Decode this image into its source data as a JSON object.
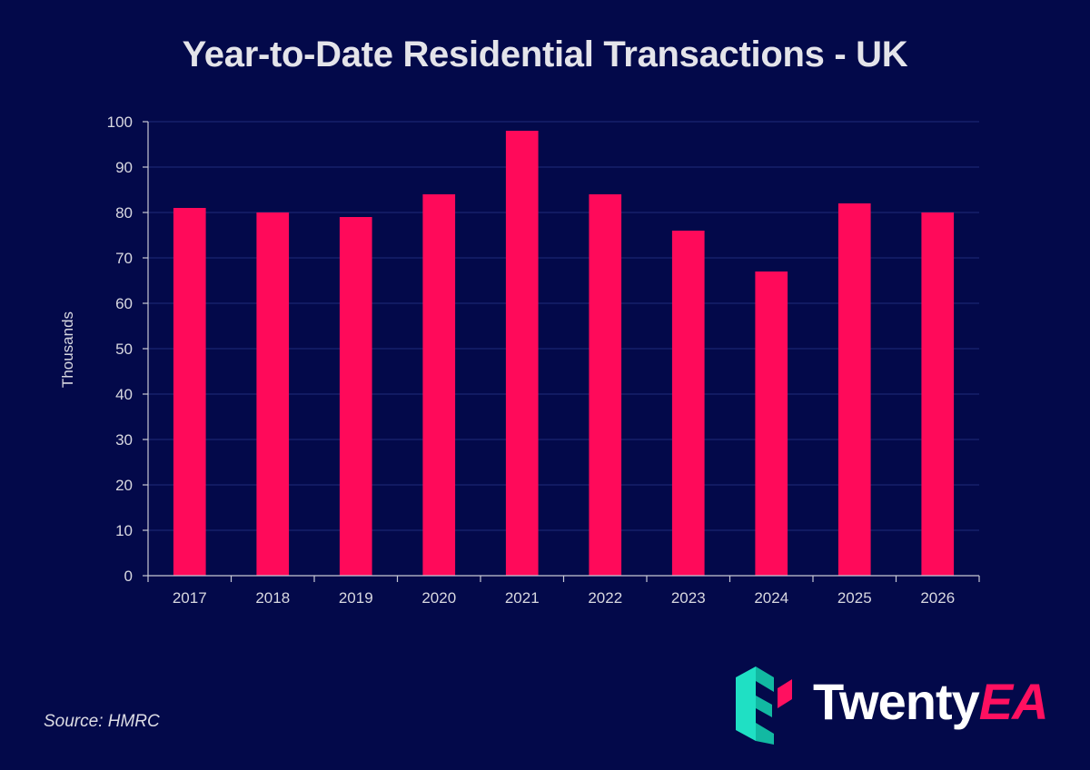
{
  "chart_data": {
    "type": "bar",
    "title": "Year-to-Date Residential Transactions - UK",
    "xlabel": "",
    "ylabel": "Thousands",
    "ylim": [
      0,
      100
    ],
    "yticks": [
      0,
      10,
      20,
      30,
      40,
      50,
      60,
      70,
      80,
      90,
      100
    ],
    "categories": [
      "2017",
      "2018",
      "2019",
      "2020",
      "2021",
      "2022",
      "2023",
      "2024",
      "2025",
      "2026"
    ],
    "values": [
      81,
      80,
      79,
      84,
      98,
      84,
      76,
      67,
      82,
      80
    ],
    "grid": true
  },
  "source": "Source: HMRC",
  "brand": {
    "name_main": "Twenty",
    "name_accent": "EA"
  },
  "colors": {
    "background": "#03094a",
    "bar": "#ff0a5a",
    "grid": "#1a2570",
    "axis": "#c8c8d4",
    "logo_teal": "#1fe0c4",
    "logo_pink": "#ff1060"
  }
}
